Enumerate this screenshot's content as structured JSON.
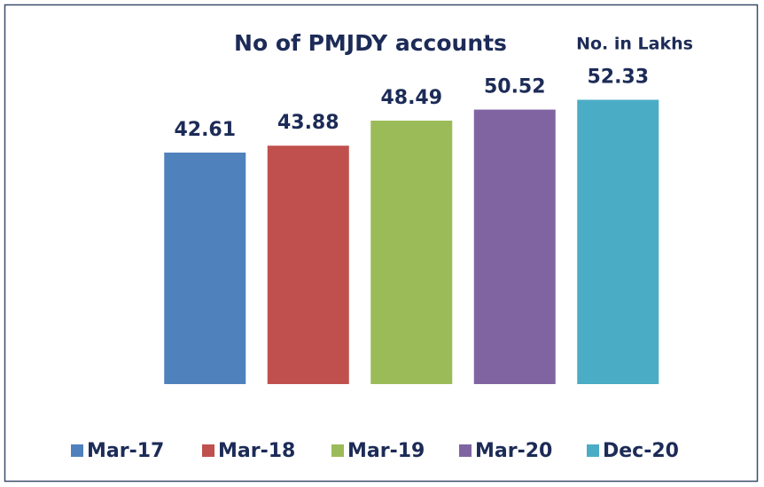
{
  "chart_data": {
    "type": "bar",
    "title": "No of PMJDY accounts",
    "annotation": "No. in Lakhs",
    "categories": [
      "Mar-17",
      "Mar-18",
      "Mar-19",
      "Mar-20",
      "Dec-20"
    ],
    "values": [
      42.61,
      43.88,
      48.49,
      50.52,
      52.33
    ],
    "colors": [
      "#4f81bd",
      "#c0504d",
      "#9bbb59",
      "#8064a2",
      "#4bacc6"
    ]
  }
}
